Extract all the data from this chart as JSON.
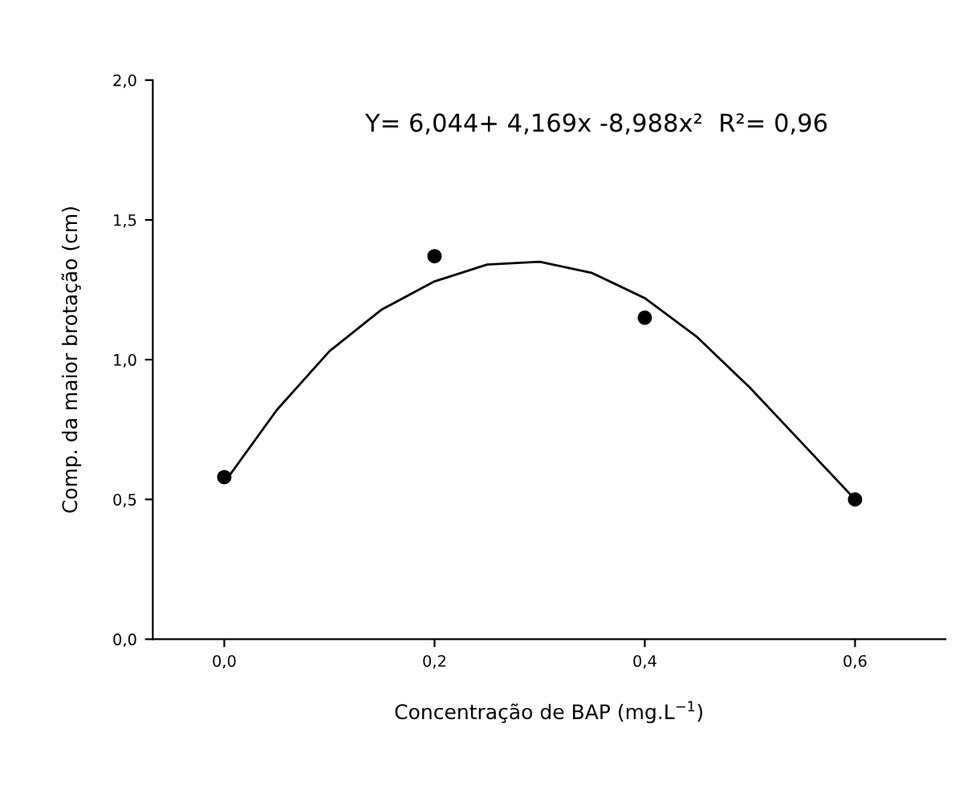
{
  "chart_data": {
    "type": "scatter",
    "xlabel": "Concentração de BAP (mg.L$^{−1}$)",
    "ylabel": "Comp. da maior brotação (cm)",
    "annotations": [
      "Y= 6,044+ 4,169x -8,988x²  R²= 0,96"
    ],
    "x": [
      0,
      0.2,
      0.4,
      0.6
    ],
    "series": [
      {
        "color": "#000000",
        "marker": "circle",
        "values": [
          0.58,
          1.37,
          1.15,
          0.5
        ]
      },
      {
        "type": "line",
        "color": "#000000",
        "marker": "none",
        "line_style": "solid",
        "x": [
          0,
          0.05,
          0.1,
          0.15,
          0.2,
          0.25,
          0.3,
          0.35,
          0.4,
          0.45,
          0.5,
          0.55,
          0.6
        ],
        "values": [
          0.56,
          0.82,
          1.03,
          1.18,
          1.28,
          1.34,
          1.35,
          1.31,
          1.22,
          1.08,
          0.9,
          0.7,
          0.5
        ]
      }
    ],
    "xlim": [
      -0.068,
      0.686
    ],
    "ylim": [
      0,
      2
    ],
    "xticks": [
      {
        "value": 0,
        "label": "0,0"
      },
      {
        "value": 0.2,
        "label": "0,2"
      },
      {
        "value": 0.4,
        "label": "0,4"
      },
      {
        "value": 0.6,
        "label": "0,6"
      }
    ],
    "yticks": [
      {
        "value": 0,
        "label": "0,0"
      },
      {
        "value": 0.5,
        "label": "0,5"
      },
      {
        "value": 1,
        "label": "1,0"
      },
      {
        "value": 1.5,
        "label": "1,5"
      },
      {
        "value": 2,
        "label": "2,0"
      }
    ],
    "grid": false,
    "legend": false
  }
}
